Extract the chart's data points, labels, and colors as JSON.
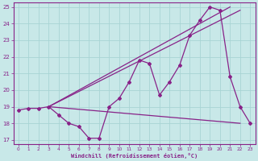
{
  "background_color": "#c8e8e8",
  "grid_color": "#a8d4d4",
  "line_color": "#882288",
  "xlabel": "Windchill (Refroidissement éolien,°C)",
  "xlim": [
    -0.5,
    23.5
  ],
  "ylim": [
    16.75,
    25.25
  ],
  "yticks": [
    17,
    18,
    19,
    20,
    21,
    22,
    23,
    24,
    25
  ],
  "xticks": [
    0,
    1,
    2,
    3,
    4,
    5,
    6,
    7,
    8,
    9,
    10,
    11,
    12,
    13,
    14,
    15,
    16,
    17,
    18,
    19,
    20,
    21,
    22,
    23
  ],
  "line1_x": [
    0,
    1,
    2,
    3,
    4,
    5,
    6,
    7,
    8,
    9,
    10,
    11,
    12,
    13,
    14,
    15,
    16,
    17,
    18,
    19,
    20,
    21,
    22,
    23
  ],
  "line1_y": [
    18.8,
    18.9,
    18.9,
    19.0,
    18.5,
    18.0,
    17.8,
    17.1,
    17.1,
    19.0,
    19.5,
    20.5,
    21.8,
    21.6,
    19.7,
    20.5,
    21.5,
    23.3,
    24.2,
    25.0,
    24.8,
    20.8,
    19.0,
    18.0
  ],
  "line2_x": [
    3,
    22
  ],
  "line2_y": [
    19.0,
    24.8
  ],
  "line3_x": [
    3,
    21
  ],
  "line3_y": [
    19.0,
    25.0
  ],
  "line4_x": [
    3,
    22
  ],
  "line4_y": [
    19.0,
    18.0
  ]
}
